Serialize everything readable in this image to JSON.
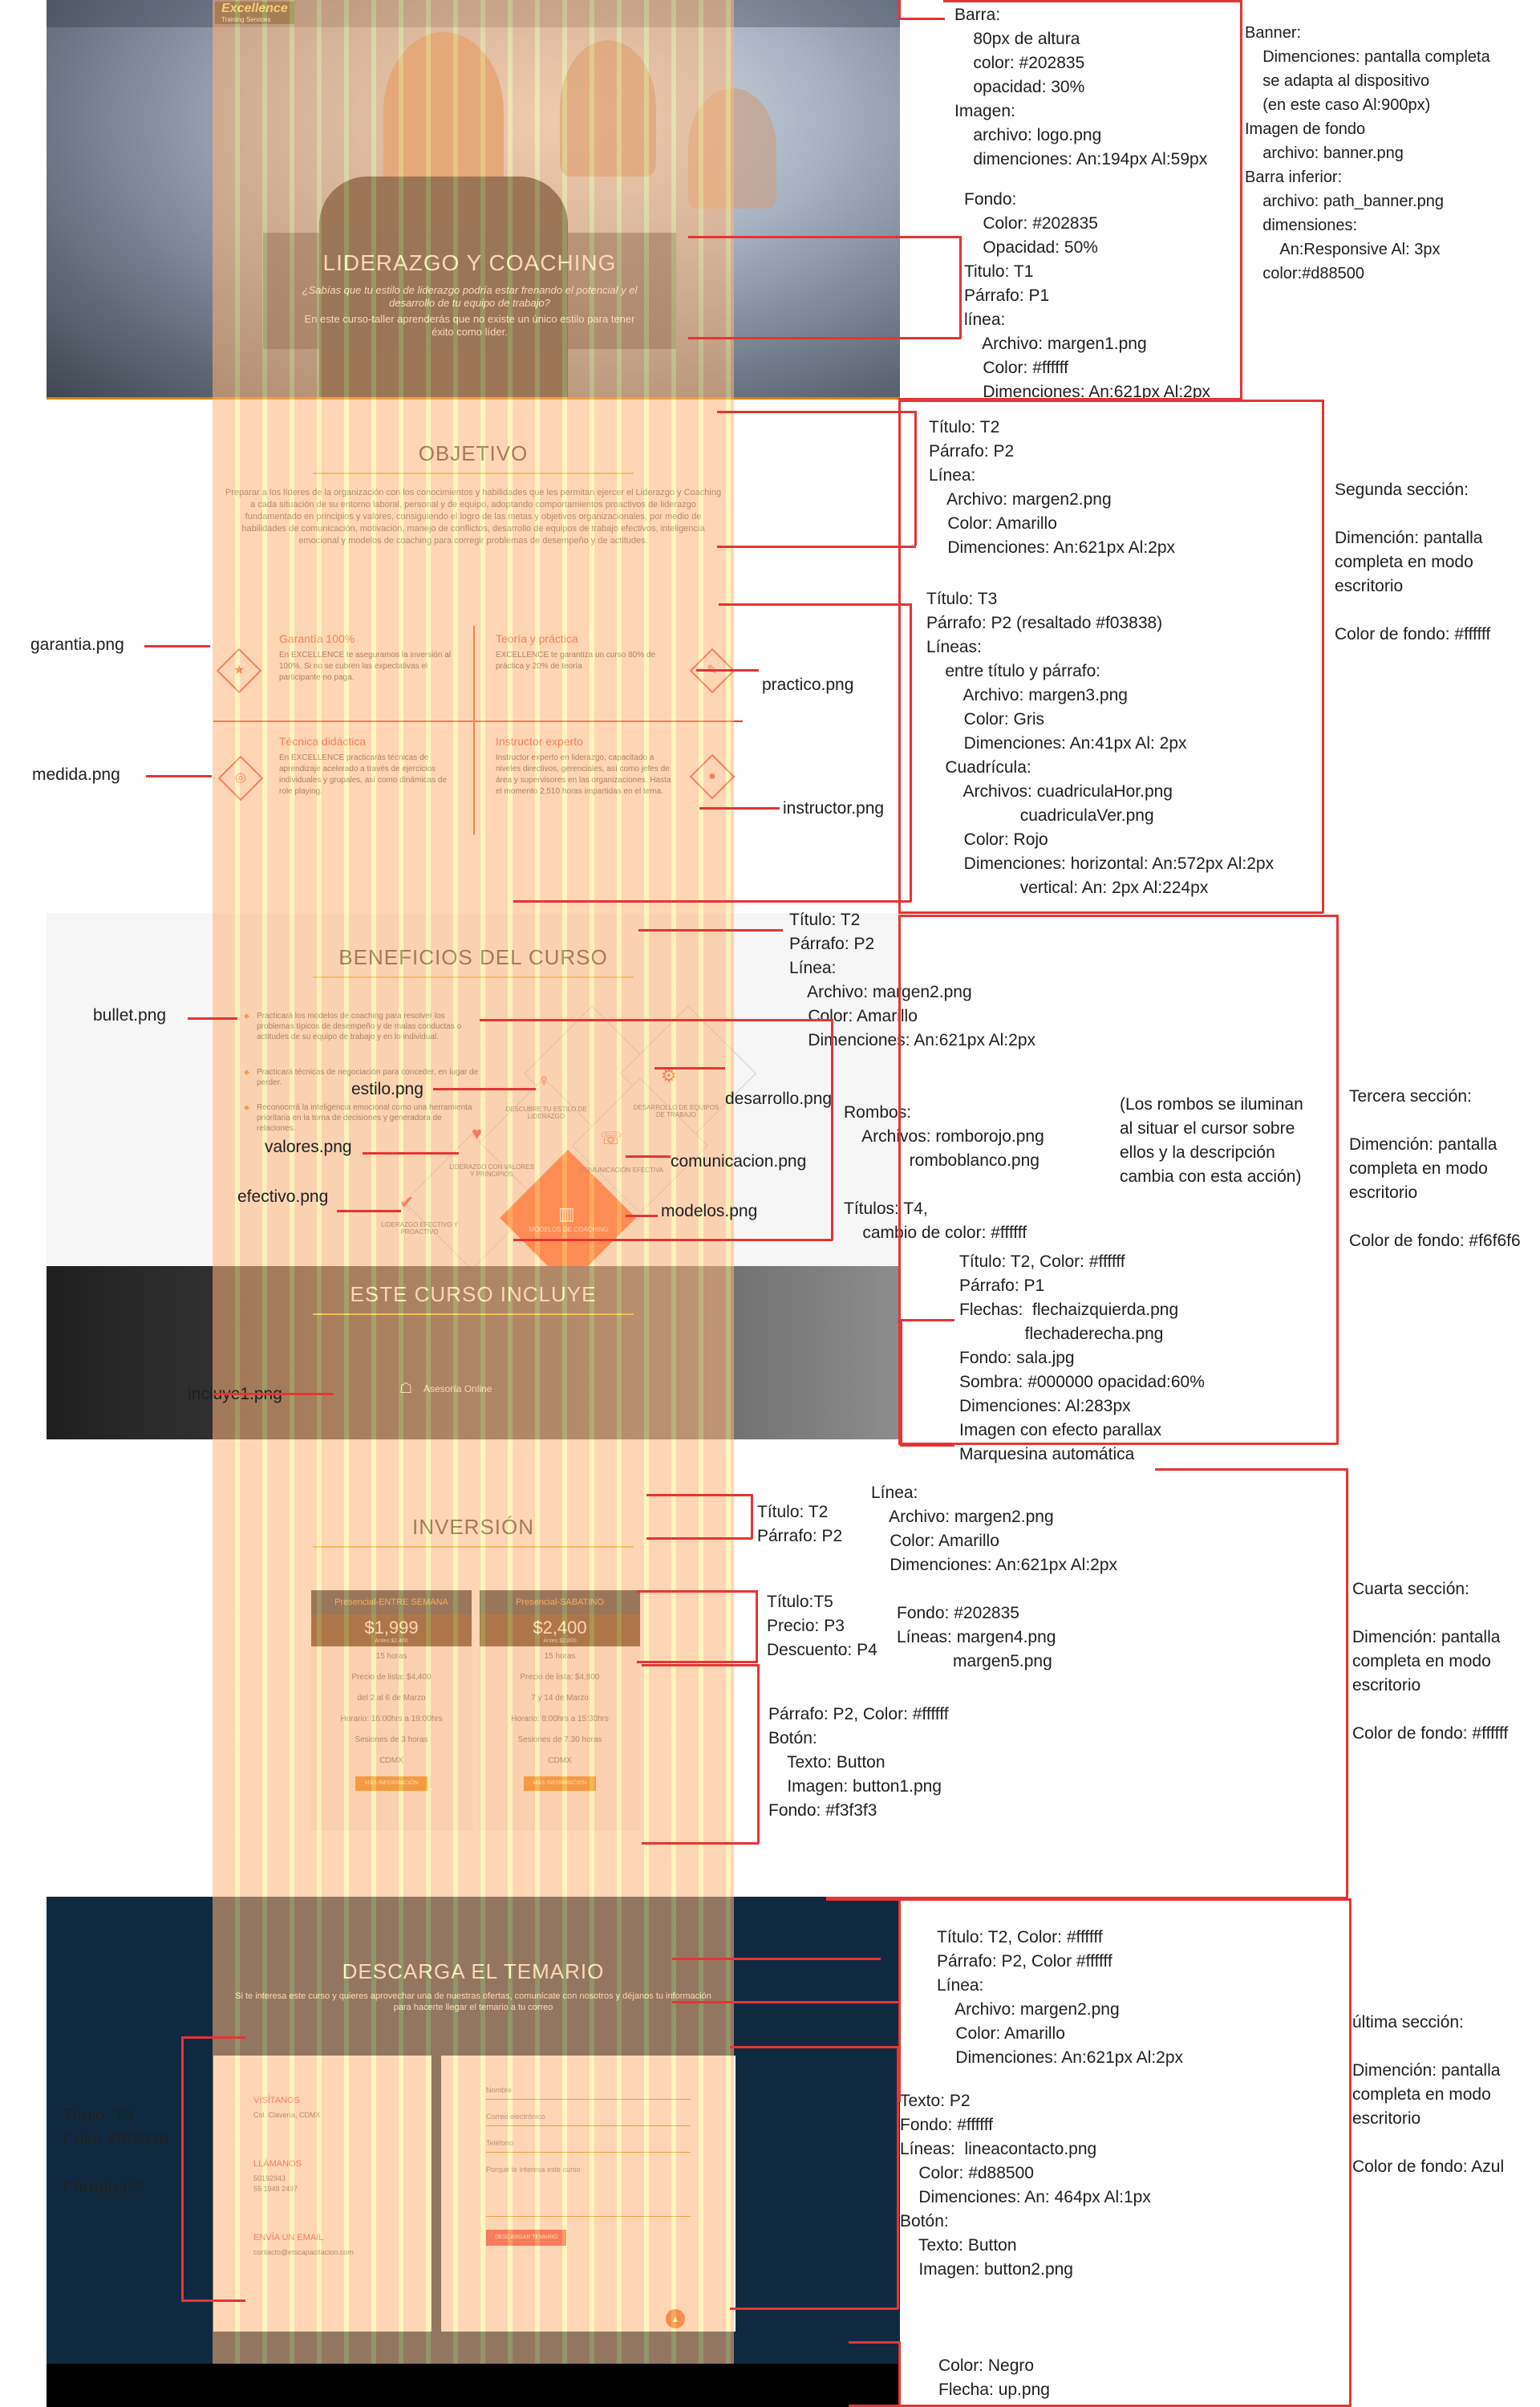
{
  "mockup": {
    "logo": {
      "brand": "Excellence",
      "sub": "Training Services"
    },
    "banner": {
      "title": "LIDERAZGO Y COACHING",
      "question": "¿Sabías que tu estilo de liderazgo podría estar frenando el potencial y el desarrollo de tu equipo de trabajo?",
      "text": "En este curso-taller aprenderás que no existe un único estilo para tener éxito como líder."
    },
    "objetivo": {
      "title": "OBJETIVO",
      "text": "Preparar a los líderes de la organización con los conocimientos y habilidades que les permitan ejercer el Liderazgo y Coaching a cada situación de su entorno laboral, personal y de equipo, adoptando comportamientos proactivos de liderazgo fundamentado en principios y valores, consiguiendo el logro de las metas y objetivos organizacionales, por medio de habilidades de comunicación, motivación, manejo de conflictos, desarrollo de equipos de trabajo efectivos, inteligencia emocional y modelos de coaching para corregir problemas de desempeño y de actitudes.",
      "cells": [
        {
          "title": "Garantía 100%",
          "text": "En EXCELLENCE te aseguramos la inversión al 100%. Si no se cubren las expectativas el participante no paga."
        },
        {
          "title": "Teoría y práctica",
          "text": "EXCELLENCE te garantiza un curso 80% de práctica y 20% de teoría"
        },
        {
          "title": "Técnica didáctica",
          "text": "En EXCELLENCE practicarás técnicas de aprendizaje acelerado a través de ejercicios individuales y grupales, así como dinámicas de role playing."
        },
        {
          "title": "Instructor experto",
          "text": "Instructor experto en liderazgo, capacitado a niveles directivos, gerenciales, así como jefes de área y supervisores en las organizaciones. Hasta el momento 2,510 horas impartidas en el tema."
        }
      ]
    },
    "beneficios": {
      "title": "BENEFICIOS DEL CURSO",
      "bullets": [
        "Practicará los modelos de coaching para resolver los problemas típicos de desempeño y de malas conductas o actitudes de su equipo de trabajo y en lo individual.",
        "Practicará técnicas de negociación para conceder, en lugar de perder.",
        "Reconocerá la inteligencia emocional como una herramienta prioritaria en la toma de decisiones y generadora de relaciones."
      ],
      "rhombs": [
        "DESCUBRE TU ESTILO DE LIDERAZGO",
        "DESARROLLO DE EQUIPOS DE TRABAJO",
        "LIDERAZGO CON VALORES Y PRINCIPIOS",
        "COMUNICACIÓN EFECTIVA",
        "LIDERAZGO EFECTIVO Y PROACTIVO",
        "MODELOS DE COACHING"
      ]
    },
    "incluye": {
      "title": "ESTE CURSO INCLUYE",
      "item": "Asesoría Online"
    },
    "inversion": {
      "title": "INVERSIÓN",
      "cards": [
        {
          "name": "Presencial-ENTRE SEMANA",
          "price": "$1,999",
          "before": "Antes $2,400",
          "lines": [
            "15 horas",
            "Precio de lista: $4,400",
            "del 2 al 6 de Marzo",
            "Horario: 16:00hrs a 19:00hrs",
            "Sesiones de 3 horas",
            "CDMX"
          ],
          "button": "MÁS INFORMACIÓN"
        },
        {
          "name": "Presencial-SABATINO",
          "price": "$2,400",
          "before": "Antes $2,800",
          "lines": [
            "15 horas",
            "Precio de lista: $4,800",
            "7 y 14 de Marzo",
            "Horario: 8:00hrs a 15:30hrs",
            "Sesiones de 7.30 horas",
            "CDMX"
          ],
          "button": "MÁS INFORMACIÓN"
        }
      ]
    },
    "descarga": {
      "title": "DESCARGA EL TEMARIO",
      "text": "Si te interesa este curso y quieres aprovechar una de nuestras ofertas, comunícate con nosotros y déjanos tu información para hacerte llegar el temario a tu correo",
      "visitanos_t": "VISÍTANOS",
      "visitanos_p": "Col. Clavería, CDMX",
      "llamanos_t": "LLÁMANOS",
      "llamanos_p1": "50192943",
      "llamanos_p2": "55 1948 2497",
      "email_t": "ENVÍA UN EMAIL",
      "email_p": "contacto@etscapacitacion.com",
      "fields": [
        "Nombre",
        "Correo electrónico",
        "Teléfono",
        "Porque te interesa este curso"
      ],
      "button": "DESCARGAR TEMARIO"
    }
  },
  "annotations": {
    "banner_bar": "Barra:\n    80px de altura\n    color: #202835\n    opacidad: 30%\nImagen:\n    archivo: logo.png\n    dimenciones: An:194px Al:59px",
    "banner_info": "Banner:\n    Dimenciones: pantalla completa\n    se adapta al dispositivo\n    (en este caso Al:900px)\nImagen de fondo\n    archivo: banner.png\nBarra inferior:\n    archivo: path_banner.png\n    dimensiones:\n        An:Responsive Al: 3px\n    color:#d88500",
    "banner_box": "Fondo:\n    Color: #202835\n    Opacidad: 50%\nTitulo: T1\nPárrafo: P1\nlínea:\n    Archivo: margen1.png\n    Color: #ffffff\n    Dimenciones: An:621px Al:2px",
    "obj_title": "Título: T2\nPárrafo: P2\nLínea:\n    Archivo: margen2.png\n    Color: Amarillo\n    Dimenciones: An:621px Al:2px",
    "obj_grid": "Título: T3\nPárrafo: P2 (resaltado #f03838)\nLíneas:\n    entre título y párrafo:\n        Archivo: margen3.png\n        Color: Gris\n        Dimenciones: An:41px Al: 2px\n    Cuadrícula:\n        Archivos: cuadriculaHor.png\n                    cuadriculaVer.png\n        Color: Rojo\n        Dimenciones: horizontal: An:572px Al:2px\n                    vertical: An: 2px Al:224px",
    "sec2": "Segunda sección:\n\nDimención: pantalla\ncompleta en modo\nescritorio\n\nColor de fondo: #ffffff",
    "ben_title": "Título: T2\nPárrafo: P2\nLínea:\n    Archivo: margen2.png\n    Color: Amarillo\n    Dimenciones: An:621px Al:2px",
    "rombos": "Rombos:\n    Archivos: romborojo.png\n              romboblanco.png\n\nTítulos: T4,\n    cambio de color: #ffffff",
    "rombos_note": "(Los rombos se iluminan\nal situar el cursor sobre\nellos y la descripción\ncambia con esta acción)",
    "sec3": "Tercera sección:\n\nDimención: pantalla\ncompleta en modo\nescritorio\n\nColor de fondo: #f6f6f6",
    "inc_info": "Título: T2, Color: #ffffff\nPárrafo: P1\nFlechas:  flechaizquierda.png\n              flechaderecha.png\nFondo: sala.jpg\nSombra: #000000 opacidad:60%\nDimenciones: Al:283px\nImagen con efecto parallax\nMarquesina automática",
    "inv_title": "Título: T2\nPárrafo: P2",
    "inv_line": "Línea:\n    Archivo: margen2.png\n    Color: Amarillo\n    Dimenciones: An:621px Al:2px",
    "inv_card": "Título:T5\nPrecio: P3\nDescuento: P4",
    "inv_fondo": "Fondo: #202835\nLíneas: margen4.png\n            margen5.png",
    "inv_btn": "Párrafo: P2, Color: #ffffff\nBotón:\n    Texto: Button\n    Imagen: button1.png\nFondo: #f3f3f3",
    "sec4": "Cuarta sección:\n\nDimención: pantalla\ncompleta en modo\nescritorio\n\nColor de fondo: #ffffff",
    "dl_title": "Título: T2, Color: #ffffff\nPárrafo: P2, Color #ffffff\nLínea:\n    Archivo: margen2.png\n    Color: Amarillo\n    Dimenciones: An:621px Al:2px",
    "dl_form": "Texto: P2\nFondo: #ffffff\nLíneas:  lineacontacto.png\n    Color: #d88500\n    Dimenciones: An: 464px Al:1px\nBotón:\n    Texto: Button\n    Imagen: button2.png",
    "dl_left": "Título: T3,\nColor #f03838\n\nPárrafo:P2",
    "sec5": "última sección:\n\nDimención: pantalla\ncompleta en modo\nescritorio\n\nColor de fondo: Azul",
    "footer": "Color: Negro\nFlecha: up.png",
    "labels": {
      "garantia": "garantia.png",
      "medida": "medida.png",
      "practico": "practico.png",
      "instructor": "instructor.png",
      "bullet": "bullet.png",
      "estilo": "estilo.png",
      "valores": "valores.png",
      "efectivo": "efectivo.png",
      "desarrollo": "desarrollo.png",
      "comunicacion": "comunicacion.png",
      "modelos": "modelos.png",
      "incluye1": "incluye1.png"
    }
  }
}
